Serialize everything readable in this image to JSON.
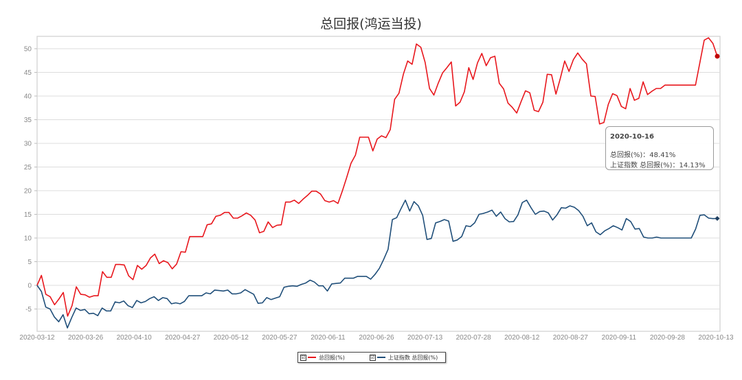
{
  "title": "总回报(鸿运当投)",
  "tooltip": {
    "date": "2020-10-16",
    "line1": "总回报(%)：48.41%",
    "line2": "上证指数 总回报(%)：14.13%"
  },
  "legend": [
    {
      "label": "总回报(%)",
      "color": "#e8161c",
      "checked": "☑"
    },
    {
      "label": "上证指数 总回报(%)",
      "color": "#1f4e79",
      "checked": "☑"
    }
  ],
  "chart_data": {
    "type": "line",
    "title": "总回报(鸿运当投)",
    "xlabel": "",
    "ylabel": "",
    "ylim": [
      -8,
      53
    ],
    "yticks": [
      -5,
      0,
      5,
      10,
      15,
      20,
      25,
      30,
      35,
      40,
      45,
      50
    ],
    "xtick_labels": [
      "2020-03-12",
      "2020-03-26",
      "2020-04-10",
      "2020-04-27",
      "2020-05-12",
      "2020-05-27",
      "2020-06-11",
      "2020-06-26",
      "2020-07-13",
      "2020-07-28",
      "2020-08-12",
      "2020-08-27",
      "2020-09-11",
      "2020-09-28",
      "2020-10-13"
    ],
    "x_start": "2020-03-12",
    "x_end": "2020-10-16",
    "grid": true,
    "legend_position": "bottom",
    "series": [
      {
        "name": "总回报(%)",
        "color": "#e8161c",
        "last_value": 48.41,
        "values": [
          0,
          2.1,
          -1.9,
          -2.4,
          -4.1,
          -2.9,
          -1.5,
          -6.5,
          -4.3,
          -0.3,
          -1.9,
          -2.0,
          -2.5,
          -2.2,
          -2.2,
          2.9,
          1.7,
          1.7,
          4.4,
          4.4,
          4.3,
          2.0,
          1.2,
          4.2,
          3.4,
          4.2,
          5.8,
          6.6,
          4.6,
          5.2,
          4.8,
          3.5,
          4.5,
          7.1,
          7.0,
          10.3,
          10.3,
          10.3,
          10.3,
          12.8,
          13.0,
          14.6,
          14.8,
          15.4,
          15.4,
          14.2,
          14.2,
          14.7,
          15.3,
          14.8,
          13.8,
          11.1,
          11.4,
          13.4,
          12.2,
          12.7,
          12.8,
          17.6,
          17.6,
          18.0,
          17.3,
          18.2,
          19.0,
          19.9,
          19.9,
          19.3,
          17.9,
          17.6,
          17.9,
          17.3,
          19.9,
          22.8,
          25.8,
          27.5,
          31.3,
          31.3,
          31.3,
          28.4,
          30.9,
          31.6,
          31.2,
          32.9,
          39.3,
          40.6,
          44.6,
          47.4,
          46.7,
          51.0,
          50.3,
          47.1,
          41.6,
          40.2,
          42.7,
          44.9,
          46.0,
          47.2,
          37.9,
          38.7,
          40.9,
          46.0,
          43.5,
          47.0,
          49.0,
          46.4,
          48.1,
          48.4,
          42.7,
          41.5,
          38.5,
          37.6,
          36.4,
          38.8,
          41.1,
          40.7,
          37.0,
          36.7,
          38.7,
          44.6,
          44.5,
          40.4,
          43.7,
          47.4,
          45.2,
          47.7,
          49.1,
          47.8,
          46.8,
          40.0,
          39.9,
          34.1,
          34.4,
          38.2,
          40.5,
          40.1,
          37.8,
          37.3,
          41.6,
          39.1,
          39.5,
          43.0,
          40.3,
          41.0,
          41.6,
          41.6,
          42.3,
          42.3,
          42.3,
          42.3,
          42.3,
          42.3,
          42.3,
          42.3,
          47.0,
          51.8,
          52.3,
          51.1,
          48.41
        ]
      },
      {
        "name": "上证指数 总回报(%)",
        "color": "#1f4e79",
        "last_value": 14.13,
        "values": [
          0,
          -1.3,
          -4.6,
          -5.0,
          -6.7,
          -7.7,
          -6.2,
          -9.0,
          -6.8,
          -4.8,
          -5.3,
          -5.1,
          -6.0,
          -5.9,
          -6.4,
          -4.8,
          -5.4,
          -5.4,
          -3.5,
          -3.7,
          -3.3,
          -4.3,
          -4.7,
          -3.2,
          -3.7,
          -3.4,
          -2.8,
          -2.4,
          -3.2,
          -2.6,
          -2.8,
          -3.9,
          -3.7,
          -3.9,
          -3.4,
          -2.2,
          -2.2,
          -2.2,
          -2.2,
          -1.6,
          -1.8,
          -1.0,
          -1.1,
          -1.2,
          -1.0,
          -1.8,
          -1.8,
          -1.6,
          -0.9,
          -1.4,
          -1.9,
          -3.8,
          -3.7,
          -2.6,
          -3.0,
          -2.7,
          -2.4,
          -0.4,
          -0.2,
          -0.1,
          -0.2,
          0.2,
          0.5,
          1.1,
          0.7,
          -0.1,
          -0.1,
          -1.2,
          0.3,
          0.4,
          0.5,
          1.5,
          1.5,
          1.5,
          1.9,
          1.9,
          1.9,
          1.3,
          2.3,
          3.6,
          5.5,
          7.6,
          13.9,
          14.3,
          16.2,
          18.0,
          15.7,
          17.7,
          16.8,
          14.8,
          9.7,
          9.9,
          13.2,
          13.5,
          13.9,
          13.6,
          9.3,
          9.6,
          10.3,
          12.6,
          12.4,
          13.2,
          15.0,
          15.2,
          15.5,
          15.9,
          14.6,
          15.5,
          14.1,
          13.4,
          13.5,
          14.9,
          17.5,
          18.0,
          16.4,
          15.0,
          15.6,
          15.7,
          15.3,
          13.8,
          14.9,
          16.4,
          16.3,
          16.8,
          16.5,
          15.8,
          14.6,
          12.6,
          13.2,
          11.3,
          10.7,
          11.5,
          12.0,
          12.6,
          12.2,
          11.7,
          14.1,
          13.5,
          11.9,
          12.0,
          10.2,
          10.0,
          10.0,
          10.2,
          10.0,
          10.0,
          10.0,
          10.0,
          10.0,
          10.0,
          10.0,
          10.0,
          11.9,
          14.8,
          14.9,
          14.2,
          14.1,
          14.13
        ]
      }
    ]
  }
}
